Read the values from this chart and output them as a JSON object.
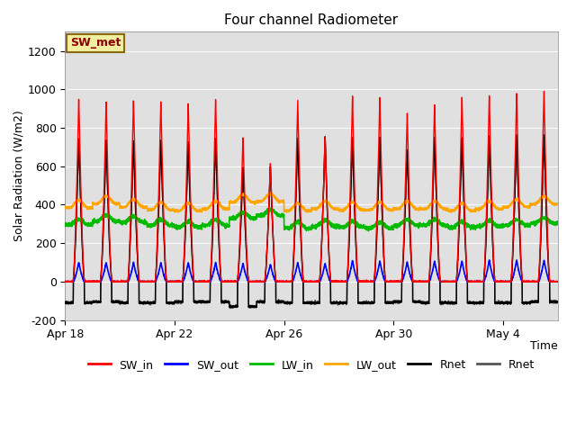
{
  "title": "Four channel Radiometer",
  "xlabel": "Time",
  "ylabel": "Solar Radiation (W/m2)",
  "ylim": [
    -200,
    1300
  ],
  "yticks": [
    -200,
    0,
    200,
    400,
    600,
    800,
    1000,
    1200
  ],
  "plot_bg_color": "#e0e0e0",
  "annotation_text": "SW_met",
  "annotation_bg": "#f0f0a0",
  "annotation_border": "#8b6914",
  "legend_labels": [
    "SW_in",
    "SW_out",
    "LW_in",
    "LW_out",
    "Rnet",
    "Rnet"
  ],
  "legend_colors": [
    "#ff0000",
    "#0000ff",
    "#00bb00",
    "#ffa500",
    "#000000",
    "#555555"
  ],
  "n_days": 18,
  "SW_in_peak": [
    960,
    945,
    950,
    945,
    935,
    960,
    760,
    620,
    955,
    760,
    975,
    970,
    885,
    930,
    970,
    980,
    990,
    1000
  ],
  "SW_out_peak": [
    100,
    100,
    100,
    100,
    100,
    100,
    95,
    90,
    100,
    95,
    110,
    108,
    102,
    108,
    108,
    112,
    112,
    112
  ],
  "LW_in_base": [
    295,
    315,
    308,
    292,
    283,
    292,
    330,
    345,
    278,
    288,
    283,
    278,
    293,
    293,
    283,
    288,
    293,
    303
  ],
  "LW_out_base": [
    383,
    405,
    388,
    373,
    368,
    378,
    413,
    418,
    368,
    378,
    373,
    373,
    378,
    378,
    368,
    378,
    388,
    403
  ],
  "Rnet_peak": [
    750,
    745,
    740,
    745,
    735,
    750,
    600,
    605,
    755,
    760,
    760,
    760,
    695,
    760,
    760,
    765,
    770,
    770
  ],
  "Rnet_min": [
    -110,
    -105,
    -110,
    -110,
    -105,
    -105,
    -130,
    -105,
    -110,
    -110,
    -110,
    -110,
    -105,
    -110,
    -110,
    -110,
    -110,
    -105
  ],
  "tick_positions": [
    0,
    4,
    8,
    12,
    16
  ],
  "tick_labels": [
    "Apr 18",
    "Apr 22",
    "Apr 26",
    "Apr 30",
    "May 4"
  ]
}
